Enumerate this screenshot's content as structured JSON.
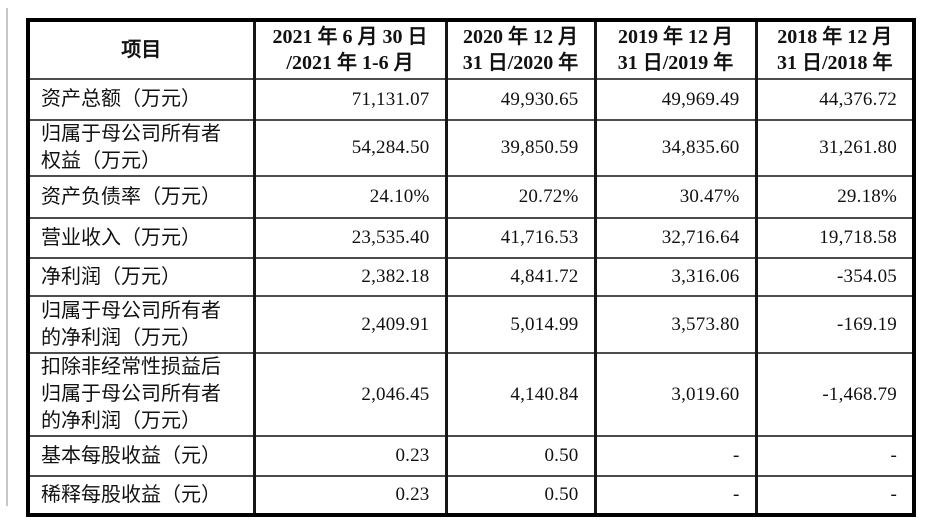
{
  "colors": {
    "background": "#ffffff",
    "outer_border": "#000000",
    "grid_line": "#4c4c4c",
    "text": "#111111",
    "edge_artifact": "#c6c6c6"
  },
  "table": {
    "header": [
      "项目",
      "2021 年 6 月 30 日\n/2021 年 1-6 月",
      "2020 年 12 月\n31 日/2020 年",
      "2019 年 12 月\n31 日/2019 年",
      "2018 年 12 月\n31 日/2018 年"
    ],
    "rows": [
      {
        "label": "资产总额（万元）",
        "values": [
          "71,131.07",
          "49,930.65",
          "49,969.49",
          "44,376.72"
        ]
      },
      {
        "label": "归属于母公司所有者\n权益（万元）",
        "values": [
          "54,284.50",
          "39,850.59",
          "34,835.60",
          "31,261.80"
        ]
      },
      {
        "label": "资产负债率（万元）",
        "values": [
          "24.10%",
          "20.72%",
          "30.47%",
          "29.18%"
        ]
      },
      {
        "label": "营业收入（万元）",
        "values": [
          "23,535.40",
          "41,716.53",
          "32,716.64",
          "19,718.58"
        ]
      },
      {
        "label": "净利润（万元）",
        "values": [
          "2,382.18",
          "4,841.72",
          "3,316.06",
          "-354.05"
        ]
      },
      {
        "label": "归属于母公司所有者\n的净利润（万元）",
        "values": [
          "2,409.91",
          "5,014.99",
          "3,573.80",
          "-169.19"
        ]
      },
      {
        "label": "扣除非经常性损益后\n归属于母公司所有者\n的净利润（万元）",
        "values": [
          "2,046.45",
          "4,140.84",
          "3,019.60",
          "-1,468.79"
        ]
      },
      {
        "label": "基本每股收益（元）",
        "values": [
          "0.23",
          "0.50",
          "-",
          "-"
        ]
      },
      {
        "label": "稀释每股收益（元）",
        "values": [
          "0.23",
          "0.50",
          "-",
          "-"
        ]
      }
    ]
  }
}
